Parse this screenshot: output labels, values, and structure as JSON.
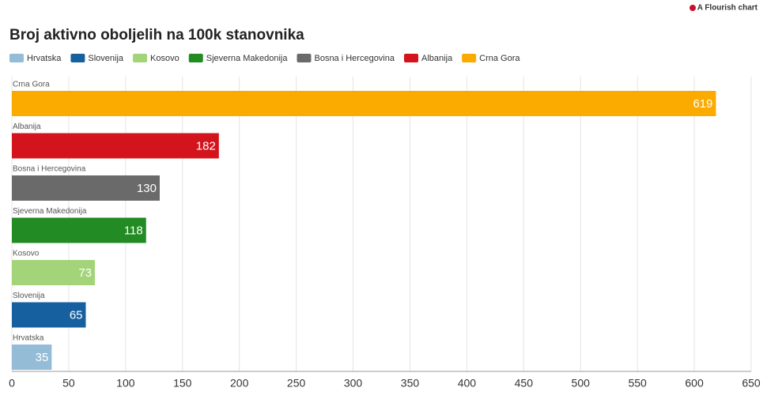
{
  "chart_data": {
    "type": "bar",
    "orientation": "horizontal",
    "credit": "A Flourish chart",
    "title": "Broj aktivno oboljelih na 100k stanovnika",
    "series": [
      {
        "name": "Hrvatska",
        "color": "#94bcd7",
        "values": [
          35
        ]
      },
      {
        "name": "Slovenija",
        "color": "#1660a0",
        "values": [
          65
        ]
      },
      {
        "name": "Kosovo",
        "color": "#a3d47a",
        "values": [
          73
        ]
      },
      {
        "name": "Sjeverna Makedonija",
        "color": "#238b23",
        "values": [
          118
        ]
      },
      {
        "name": "Bosna i Hercegovina",
        "color": "#6a6a6a",
        "values": [
          130
        ]
      },
      {
        "name": "Albanija",
        "color": "#d4141c",
        "values": [
          182
        ]
      },
      {
        "name": "Crna Gora",
        "color": "#fbab00",
        "values": [
          619
        ]
      }
    ],
    "xlim": [
      0,
      650
    ],
    "xticks": [
      0,
      50,
      100,
      150,
      200,
      250,
      300,
      350,
      400,
      450,
      500,
      550,
      600,
      650
    ],
    "grid": true
  }
}
